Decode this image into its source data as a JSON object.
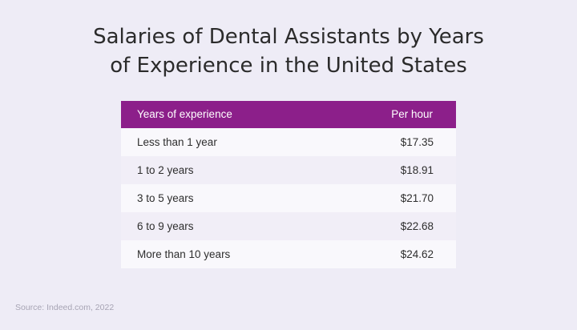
{
  "chart_data": {
    "type": "table",
    "title": "Salaries of Dental Assistants by Years of Experience in the United States",
    "title_lines": [
      "Salaries of Dental Assistants by Years",
      "of Experience in the United States"
    ],
    "columns": [
      "Years of experience",
      "Per hour"
    ],
    "rows": [
      {
        "experience": "Less than 1 year",
        "per_hour": "$17.35"
      },
      {
        "experience": "1 to 2 years",
        "per_hour": "$18.91"
      },
      {
        "experience": "3 to 5 years",
        "per_hour": "$21.70"
      },
      {
        "experience": "6 to 9 years",
        "per_hour": "$22.68"
      },
      {
        "experience": "More than 10 years",
        "per_hour": "$24.62"
      }
    ],
    "values": [
      17.35,
      18.91,
      21.7,
      22.68,
      24.62
    ],
    "source": "Source: Indeed.com, 2022"
  },
  "colors": {
    "background": "#eeecf6",
    "header": "#8c1f8a",
    "row_light": "#f9f8fc",
    "row_shade": "#f1eef7"
  }
}
